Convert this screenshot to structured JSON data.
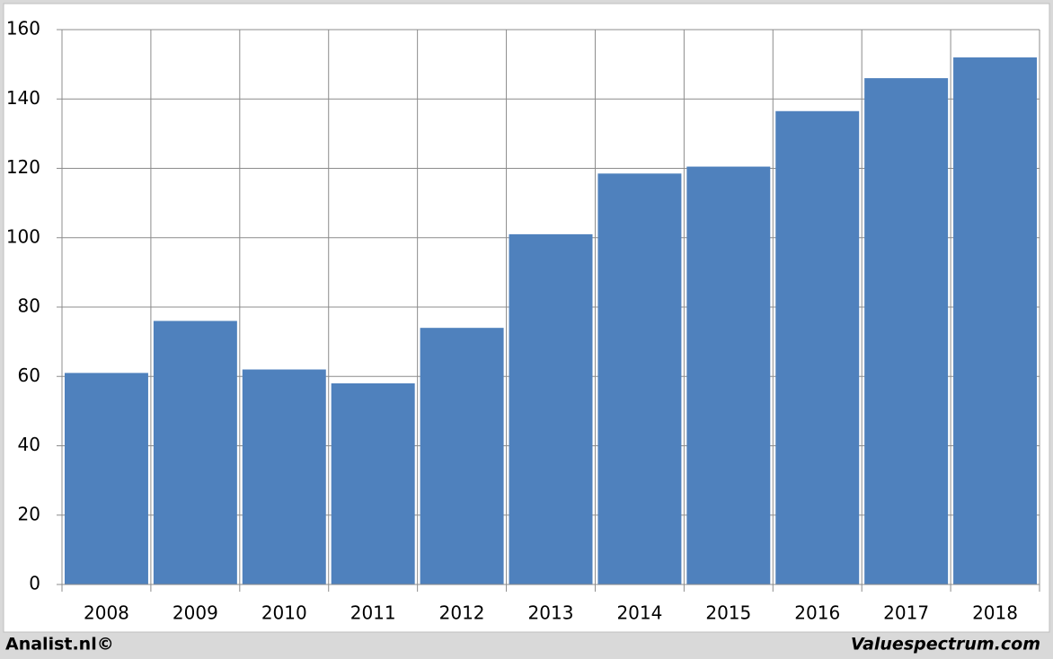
{
  "chart_data": {
    "type": "bar",
    "categories": [
      "2008",
      "2009",
      "2010",
      "2011",
      "2012",
      "2013",
      "2014",
      "2015",
      "2016",
      "2017",
      "2018"
    ],
    "values": [
      61,
      76,
      62,
      58,
      74,
      101,
      118.5,
      120.5,
      136.5,
      146,
      152
    ],
    "color": "#4f81bd",
    "ylim": [
      0,
      160
    ],
    "yticks": [
      0,
      20,
      40,
      60,
      80,
      100,
      120,
      140,
      160
    ],
    "grid": true
  },
  "footer": {
    "left": "Analist.nl©",
    "right": "Valuespectrum.com"
  }
}
